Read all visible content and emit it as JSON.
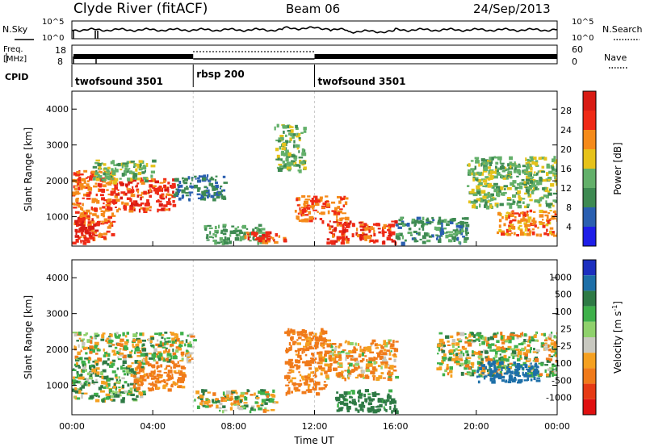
{
  "header": {
    "station": "Clyde River (fitACF)",
    "beam": "Beam 06",
    "date": "24/Sep/2013"
  },
  "noise_panel": {
    "left_label": "N.Sky",
    "right_label": "N.Search",
    "left_ticks": [
      "10^5",
      "10^0"
    ],
    "right_ticks": [
      "10^5",
      "10^0"
    ]
  },
  "freq_panel": {
    "left_label_1": "Freq.",
    "left_label_2": "[MHz]",
    "right_label": "Nave",
    "left_ticks": [
      "18",
      "8"
    ],
    "right_ticks": [
      "60",
      "0"
    ]
  },
  "cpid_panel": {
    "label": "CPID",
    "modes": [
      {
        "name": "twofsound 3501",
        "start_hr": 0,
        "end_hr": 6
      },
      {
        "name": "rbsp 200",
        "start_hr": 6,
        "end_hr": 12
      },
      {
        "name": "twofsound 3501",
        "start_hr": 12,
        "end_hr": 24
      }
    ]
  },
  "power_panel": {
    "ylabel": "Slant Range [km]",
    "yticks": [
      "1000",
      "2000",
      "3000",
      "4000"
    ],
    "colorbar_label": "Power [dB]",
    "colorbar_ticks": [
      "4",
      "8",
      "12",
      "16",
      "20",
      "24",
      "28"
    ],
    "colorbar_colors": [
      "#1e1ee8",
      "#2a5fb0",
      "#3e8a52",
      "#63b06a",
      "#e6c21a",
      "#f58a1a",
      "#ef2a16",
      "#d81b14"
    ]
  },
  "velocity_panel": {
    "ylabel": "Slant Range [km]",
    "yticks": [
      "1000",
      "2000",
      "3000",
      "4000"
    ],
    "colorbar_label": "Velocity [m s",
    "colorbar_label_sup": "-1",
    "colorbar_label_end": "]",
    "colorbar_ticks": [
      "1000",
      "500",
      "100",
      "25",
      "-25",
      "-100",
      "-500",
      "-1000"
    ],
    "colorbar_colors": [
      "#1c2fbf",
      "#1d6fa8",
      "#2e7a45",
      "#3eb04a",
      "#8fd16c",
      "#c8c8c0",
      "#f5a020",
      "#f07a1a",
      "#e63a14",
      "#e01010"
    ]
  },
  "x_axis": {
    "label": "Time UT",
    "ticks": [
      "00:00",
      "04:00",
      "08:00",
      "12:00",
      "16:00",
      "20:00",
      "00:00"
    ]
  },
  "chart_data": {
    "type": "heatmap",
    "title": "Clyde River (fitACF)   Beam 06   24/Sep/2013",
    "xlabel": "Time UT",
    "ylabel": "Slant Range [km]",
    "xlim_hours": [
      0,
      24
    ],
    "ylim_km": [
      180,
      4500
    ],
    "power_colorbar_db": [
      4,
      8,
      12,
      16,
      20,
      24,
      28
    ],
    "velocity_colorbar_ms": [
      1000,
      500,
      100,
      25,
      -25,
      -100,
      -500,
      -1000
    ],
    "power_regions": [
      {
        "t0": 0.0,
        "t1": 2.0,
        "r0": 400,
        "r1": 2300,
        "power_db": 24
      },
      {
        "t0": 0.0,
        "t1": 1.2,
        "r0": 300,
        "r1": 1000,
        "power_db": 30
      },
      {
        "t0": 2.0,
        "t1": 5.0,
        "r0": 1200,
        "r1": 2100,
        "power_db": 26
      },
      {
        "t0": 1.0,
        "t1": 4.0,
        "r0": 2000,
        "r1": 2600,
        "power_db": 14
      },
      {
        "t0": 5.0,
        "t1": 7.5,
        "r0": 1500,
        "r1": 2200,
        "power_db": 8
      },
      {
        "t0": 6.5,
        "t1": 9.5,
        "r0": 300,
        "r1": 800,
        "power_db": 12
      },
      {
        "t0": 8.5,
        "t1": 10.5,
        "r0": 300,
        "r1": 600,
        "power_db": 26
      },
      {
        "t0": 10.0,
        "t1": 11.5,
        "r0": 2300,
        "r1": 3600,
        "power_db": 14
      },
      {
        "t0": 11.0,
        "t1": 13.5,
        "r0": 900,
        "r1": 1600,
        "power_db": 24
      },
      {
        "t0": 12.5,
        "t1": 16.0,
        "r0": 300,
        "r1": 900,
        "power_db": 26
      },
      {
        "t0": 16.0,
        "t1": 19.5,
        "r0": 300,
        "r1": 1000,
        "power_db": 10
      },
      {
        "t0": 19.5,
        "t1": 24.0,
        "r0": 1300,
        "r1": 2700,
        "power_db": 14
      },
      {
        "t0": 21.0,
        "t1": 24.0,
        "r0": 500,
        "r1": 1200,
        "power_db": 22
      }
    ],
    "velocity_regions": [
      {
        "t0": 0.0,
        "t1": 6.0,
        "r0": 1700,
        "r1": 2500,
        "velocity_ms": 0
      },
      {
        "t0": 0.0,
        "t1": 3.5,
        "r0": 600,
        "r1": 1700,
        "velocity_ms": 60
      },
      {
        "t0": 3.0,
        "t1": 5.5,
        "r0": 900,
        "r1": 1700,
        "velocity_ms": -200
      },
      {
        "t0": 6.0,
        "t1": 10.0,
        "r0": 300,
        "r1": 900,
        "velocity_ms": 0
      },
      {
        "t0": 10.5,
        "t1": 12.5,
        "r0": 800,
        "r1": 2600,
        "velocity_ms": -200
      },
      {
        "t0": 12.5,
        "t1": 16.0,
        "r0": 1200,
        "r1": 2300,
        "velocity_ms": -100
      },
      {
        "t0": 13.0,
        "t1": 16.0,
        "r0": 300,
        "r1": 900,
        "velocity_ms": 200
      },
      {
        "t0": 18.0,
        "t1": 24.0,
        "r0": 1300,
        "r1": 2500,
        "velocity_ms": 0
      },
      {
        "t0": 20.0,
        "t1": 23.0,
        "r0": 1100,
        "r1": 1700,
        "velocity_ms": 700
      }
    ]
  }
}
